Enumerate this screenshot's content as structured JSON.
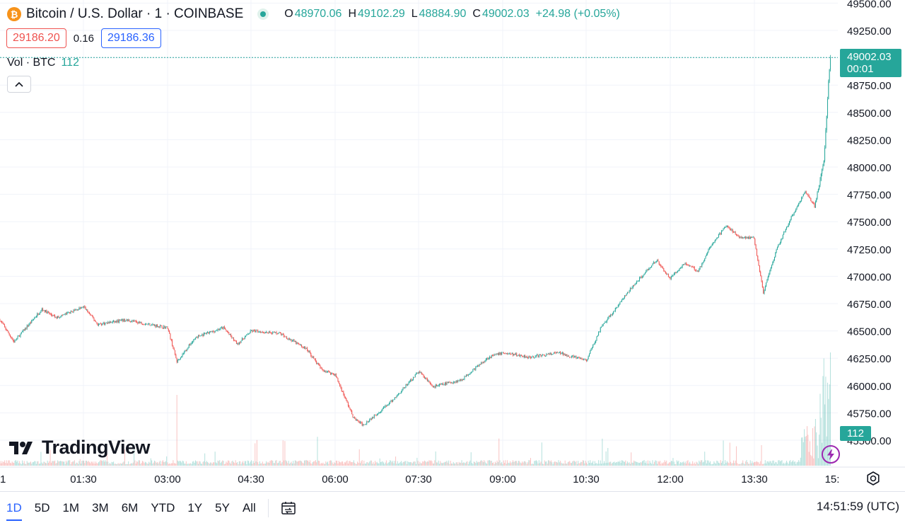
{
  "header": {
    "symbol": "Bitcoin / U.S. Dollar · 1 · COINBASE",
    "coin_glyph": "₿",
    "ohlc": {
      "o_label": "O",
      "o": "48970.06",
      "h_label": "H",
      "h": "49102.29",
      "l_label": "L",
      "l": "48884.90",
      "c_label": "C",
      "c": "49002.03",
      "change": "+24.98 (+0.05%)"
    },
    "bid": "29186.20",
    "spread": "0.16",
    "ask": "29186.36"
  },
  "volume_legend": {
    "label": "Vol · BTC",
    "value": "112"
  },
  "last_price": {
    "value": "49002.03",
    "countdown": "00:01"
  },
  "volume_tag": "112",
  "brand": "TradingView",
  "timeframes": [
    "1D",
    "5D",
    "1M",
    "3M",
    "6M",
    "YTD",
    "1Y",
    "5Y",
    "All"
  ],
  "active_timeframe": "1D",
  "clock": "14:51:59 (UTC)",
  "icons": [
    "bitcoin-icon",
    "live-dot-icon",
    "chevron-up-icon",
    "lightning-icon",
    "settings-gear-icon",
    "compare-calendar-icon"
  ],
  "colors": {
    "up": "#26a69a",
    "down": "#ef5350",
    "bid": "#ef5350",
    "ask": "#2962ff",
    "accent": "#2962ff",
    "lightning": "#9c27b0"
  },
  "chart_data": {
    "type": "candlestick",
    "interval": "1 minute",
    "y_axis": {
      "ticks": [
        45500,
        45750,
        46000,
        46250,
        46500,
        46750,
        47000,
        47250,
        47500,
        47750,
        48000,
        48250,
        48500,
        48750,
        49000,
        49250,
        49500
      ],
      "labels": [
        "45500.00",
        "45750.00",
        "46000.00",
        "46250.00",
        "46500.00",
        "46750.00",
        "47000.00",
        "47250.00",
        "47500.00",
        "47750.00",
        "48000.00",
        "48250.00",
        "48500.00",
        "48750.00",
        "49000.00",
        "49250.00",
        "49500.00"
      ]
    },
    "x_axis": {
      "labels": [
        "1",
        "01:30",
        "03:00",
        "04:30",
        "06:00",
        "07:30",
        "09:00",
        "10:30",
        "12:00",
        "13:30",
        "15:"
      ]
    },
    "grid": true,
    "price_path": [
      [
        "00:00",
        46600
      ],
      [
        "00:15",
        46400
      ],
      [
        "00:30",
        46550
      ],
      [
        "00:45",
        46700
      ],
      [
        "01:00",
        46620
      ],
      [
        "01:30",
        46720
      ],
      [
        "01:45",
        46560
      ],
      [
        "02:15",
        46600
      ],
      [
        "03:00",
        46530
      ],
      [
        "03:10",
        46220
      ],
      [
        "03:30",
        46440
      ],
      [
        "04:00",
        46530
      ],
      [
        "04:15",
        46380
      ],
      [
        "04:30",
        46500
      ],
      [
        "05:00",
        46480
      ],
      [
        "05:30",
        46330
      ],
      [
        "05:45",
        46150
      ],
      [
        "06:00",
        46100
      ],
      [
        "06:20",
        45700
      ],
      [
        "06:30",
        45640
      ],
      [
        "07:00",
        45850
      ],
      [
        "07:30",
        46130
      ],
      [
        "07:45",
        45990
      ],
      [
        "08:15",
        46050
      ],
      [
        "08:45",
        46260
      ],
      [
        "09:00",
        46300
      ],
      [
        "09:30",
        46260
      ],
      [
        "10:00",
        46300
      ],
      [
        "10:30",
        46230
      ],
      [
        "10:45",
        46520
      ],
      [
        "11:15",
        46860
      ],
      [
        "11:45",
        47150
      ],
      [
        "12:00",
        46980
      ],
      [
        "12:15",
        47120
      ],
      [
        "12:30",
        47050
      ],
      [
        "12:45",
        47300
      ],
      [
        "13:00",
        47460
      ],
      [
        "13:15",
        47360
      ],
      [
        "13:30",
        47350
      ],
      [
        "13:40",
        46850
      ],
      [
        "13:55",
        47260
      ],
      [
        "14:10",
        47540
      ],
      [
        "14:25",
        47780
      ],
      [
        "14:35",
        47640
      ],
      [
        "14:45",
        48040
      ],
      [
        "14:50",
        48800
      ],
      [
        "14:52",
        49002.03
      ]
    ],
    "last_price": 49002.03,
    "current_volume": 112
  }
}
